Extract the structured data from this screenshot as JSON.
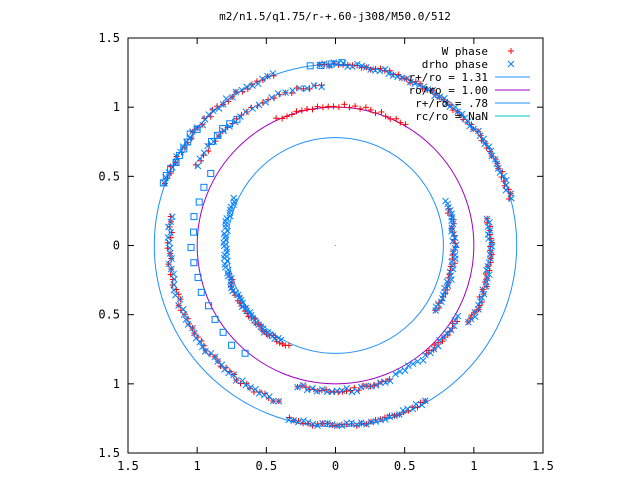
{
  "chart_data": {
    "type": "scatter",
    "title": "m2/n1.5/q1.75/r-+.60-j308/M50.0/512",
    "xlim": [
      -1.5,
      1.5
    ],
    "ylim": [
      -1.5,
      1.5
    ],
    "x_tick_values": [
      -1.5,
      -1,
      -0.5,
      0,
      0.5,
      1,
      1.5
    ],
    "x_tick_labels": [
      "1.5",
      "1",
      "0.5",
      "0",
      "0.5",
      "1",
      "1.5"
    ],
    "y_tick_values": [
      1.5,
      1,
      0.5,
      0,
      -0.5,
      -1,
      -1.5
    ],
    "y_tick_labels": [
      "1.5",
      "1",
      "0.5",
      "0",
      "0.5",
      "1",
      "1.5"
    ],
    "grid": false,
    "legend_position": "top-right",
    "legend": [
      {
        "label": "W phase",
        "marker": "plus",
        "color": "#ff0000"
      },
      {
        "label": "drho phase",
        "marker": "cross",
        "color": "#0080ff"
      },
      {
        "label": "r+/ro = 1.31",
        "marker": "line",
        "color": "#1e90ff"
      },
      {
        "label": "ro/ro = 1.00",
        "marker": "line",
        "color": "#a000c0"
      },
      {
        "label": "r+/ro = .78",
        "marker": "line",
        "color": "#1e90ff"
      },
      {
        "label": "rc/ro = NaN",
        "marker": "line",
        "color": "#00c0d0"
      }
    ],
    "circles": [
      {
        "name": "r+/ro = 1.31",
        "r": 1.31,
        "color": "#1e90ff"
      },
      {
        "name": "ro/ro = 1.00",
        "r": 1.0,
        "color": "#a000c0"
      },
      {
        "name": "r+/ro = .78",
        "r": 0.78,
        "color": "#1e90ff"
      }
    ],
    "series": [
      {
        "name": "W phase",
        "color": "#ff0000",
        "arcs": [
          {
            "r": 1.31,
            "a0": 15,
            "a1": 95,
            "n": 55
          },
          {
            "r": 1.31,
            "a0": 110,
            "a1": 160,
            "n": 28
          },
          {
            "r": 1.16,
            "a0": 95,
            "a1": 150,
            "n": 26
          },
          {
            "r": 1.2,
            "a0": 170,
            "a1": 250,
            "n": 45
          },
          {
            "r": 1.3,
            "a0": 255,
            "a1": 300,
            "n": 30
          },
          {
            "r": 0.8,
            "a0": 195,
            "a1": 245,
            "n": 32
          },
          {
            "r": 1.01,
            "a0": 60,
            "a1": 115,
            "n": 26
          },
          {
            "r": 1.05,
            "a0": 255,
            "a1": 292,
            "n": 24
          },
          {
            "r": 1.12,
            "a0": 330,
            "a1": 370,
            "n": 28
          },
          {
            "r": 1.03,
            "a0": 310,
            "a1": 328,
            "n": 12
          },
          {
            "r": 0.86,
            "a0": 327,
            "a1": 378,
            "n": 28
          }
        ]
      },
      {
        "name": "drho phase",
        "color": "#0080ff",
        "arcs": [
          {
            "r": 1.31,
            "a0": 15,
            "a1": 95,
            "n": 55
          },
          {
            "r": 1.31,
            "a0": 110,
            "a1": 160,
            "n": 28
          },
          {
            "r": 1.16,
            "a0": 95,
            "a1": 150,
            "n": 22
          },
          {
            "r": 1.2,
            "a0": 170,
            "a1": 250,
            "n": 45
          },
          {
            "r": 1.3,
            "a0": 255,
            "a1": 300,
            "n": 30
          },
          {
            "r": 0.8,
            "a0": 155,
            "a1": 240,
            "n": 55
          },
          {
            "r": 1.12,
            "a0": 330,
            "a1": 370,
            "n": 28
          },
          {
            "r": 1.03,
            "a0": 295,
            "a1": 330,
            "n": 18
          },
          {
            "r": 0.86,
            "a0": 327,
            "a1": 382,
            "n": 34
          },
          {
            "r": 1.05,
            "a0": 255,
            "a1": 292,
            "n": 20
          }
        ],
        "squares": [
          {
            "r": 1.31,
            "a0": 140,
            "a1": 160,
            "n": 9
          },
          {
            "r": 1.03,
            "a0": 150,
            "a1": 230,
            "n": 14
          },
          {
            "r": 1.16,
            "a0": 128,
            "a1": 140,
            "n": 5
          },
          {
            "r": 1.31,
            "a0": 88,
            "a1": 98,
            "n": 4
          }
        ]
      }
    ]
  }
}
